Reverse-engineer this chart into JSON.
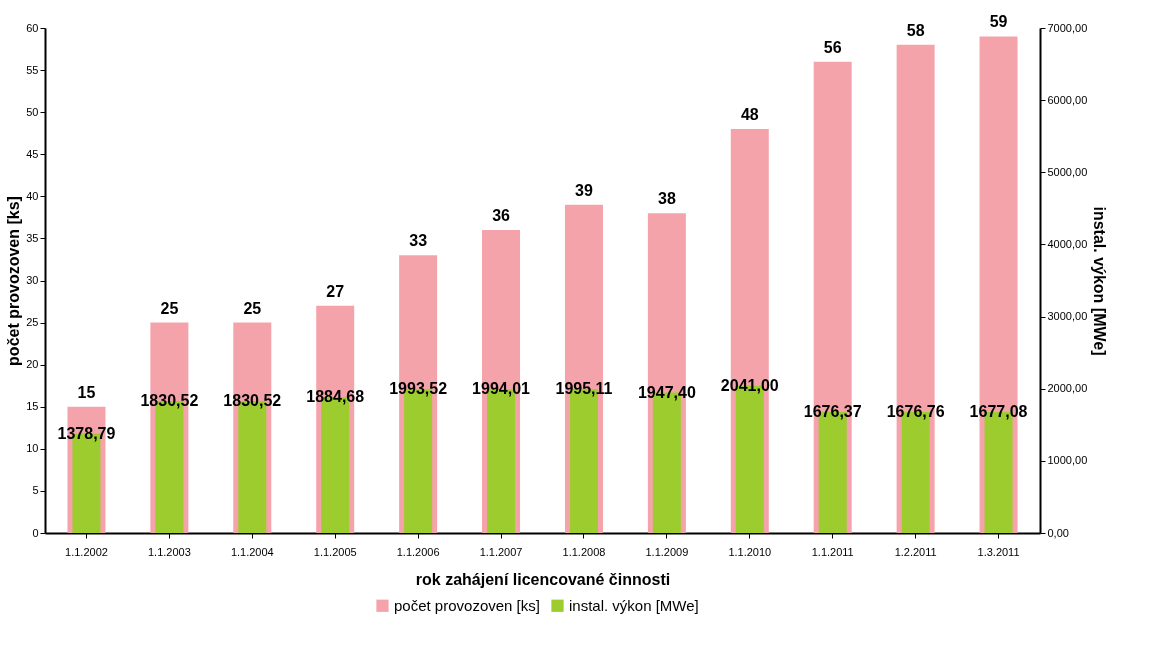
{
  "chart_data": {
    "type": "bar",
    "xlabel": "rok zahájení licencované činnosti",
    "ylabel": "počet provozoven [ks]",
    "y2label": "instal. výkon [MWe]",
    "categories": [
      "1.1.2002",
      "1.1.2003",
      "1.1.2004",
      "1.1.2005",
      "1.1.2006",
      "1.1.2007",
      "1.1.2008",
      "1.1.2009",
      "1.1.2010",
      "1.1.2011",
      "1.2.2011",
      "1.3.2011"
    ],
    "series": [
      {
        "name": "počet provozoven [ks]",
        "color": "#f5a3aa",
        "values": [
          15,
          25,
          25,
          27,
          33,
          36,
          39,
          38,
          48,
          56,
          58,
          59
        ],
        "value_labels": [
          "15",
          "25",
          "25",
          "27",
          "33",
          "36",
          "39",
          "38",
          "48",
          "56",
          "58",
          "59"
        ]
      },
      {
        "name": "instal. výkon [MWe]",
        "color": "#9ccc2e",
        "axis": "y2",
        "values": [
          1378.79,
          1830.52,
          1830.52,
          1884.68,
          1993.52,
          1994.01,
          1995.11,
          1947.4,
          2041.0,
          1676.37,
          1676.76,
          1677.08
        ],
        "value_labels": [
          "1378,79",
          "1830,52",
          "1830,52",
          "1884,68",
          "1993,52",
          "1994,01",
          "1995,11",
          "1947,40",
          "2041,00",
          "1676,37",
          "1676,76",
          "1677,08"
        ]
      }
    ],
    "ylim": [
      0,
      60
    ],
    "yticks": [
      0,
      5,
      10,
      15,
      20,
      25,
      30,
      35,
      40,
      45,
      50,
      55,
      60
    ],
    "y2lim": [
      0,
      7000
    ],
    "y2ticks": [
      {
        "value": 0,
        "label": "0,00"
      },
      {
        "value": 1000,
        "label": "1000,00"
      },
      {
        "value": 2000,
        "label": "2000,00"
      },
      {
        "value": 3000,
        "label": "3000,00"
      },
      {
        "value": 4000,
        "label": "4000,00"
      },
      {
        "value": 5000,
        "label": "5000,00"
      },
      {
        "value": 6000,
        "label": "6000,00"
      },
      {
        "value": 7000,
        "label": "7000,00"
      }
    ],
    "grid": false,
    "legend": "bottom"
  }
}
